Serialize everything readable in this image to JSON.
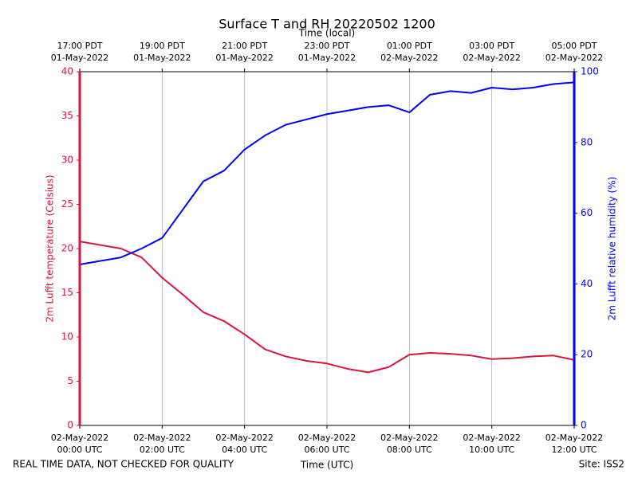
{
  "chart_data": {
    "type": "line",
    "title": "Surface T and RH 20220502 1200",
    "xlabel": "Time (UTC)",
    "x2label": "Time (local)",
    "ylabel": "2m Lufft temperature (Celsius)",
    "y2label": "2m Lufft relative humidity (%)",
    "footer_left": "REAL TIME DATA, NOT CHECKED FOR QUALITY",
    "footer_right": "Site: ISS2",
    "grid": "x",
    "x": [
      0,
      0.5,
      1,
      1.5,
      2,
      2.5,
      3,
      3.5,
      4,
      4.5,
      5,
      5.5,
      6,
      6.5,
      7,
      7.5,
      8,
      8.5,
      9,
      9.5,
      10,
      10.5,
      11,
      11.5,
      12
    ],
    "xlim": [
      0,
      12
    ],
    "xticks": [
      {
        "value": 0,
        "label": "02-May-2022\n00:00 UTC"
      },
      {
        "value": 2,
        "label": "02-May-2022\n02:00 UTC"
      },
      {
        "value": 4,
        "label": "02-May-2022\n04:00 UTC"
      },
      {
        "value": 6,
        "label": "02-May-2022\n06:00 UTC"
      },
      {
        "value": 8,
        "label": "02-May-2022\n08:00 UTC"
      },
      {
        "value": 10,
        "label": "02-May-2022\n10:00 UTC"
      },
      {
        "value": 12,
        "label": "02-May-2022\n12:00 UTC"
      }
    ],
    "x2ticks": [
      {
        "value": 0,
        "label": "17:00 PDT\n01-May-2022"
      },
      {
        "value": 2,
        "label": "19:00 PDT\n01-May-2022"
      },
      {
        "value": 4,
        "label": "21:00 PDT\n01-May-2022"
      },
      {
        "value": 6,
        "label": "23:00 PDT\n01-May-2022"
      },
      {
        "value": 8,
        "label": "01:00 PDT\n02-May-2022"
      },
      {
        "value": 10,
        "label": "03:00 PDT\n02-May-2022"
      },
      {
        "value": 12,
        "label": "05:00 PDT\n02-May-2022"
      }
    ],
    "ylim": [
      0,
      40
    ],
    "yticks": [
      0,
      5,
      10,
      15,
      20,
      25,
      30,
      35,
      40
    ],
    "y2lim": [
      0,
      100
    ],
    "y2ticks": [
      0,
      20,
      40,
      60,
      80,
      100
    ],
    "series": [
      {
        "color": "#dc143c",
        "values": [
          20.8,
          20.4,
          20.0,
          19.0,
          16.7,
          14.8,
          12.8,
          11.8,
          10.3,
          8.6,
          7.8,
          7.3,
          7.0,
          6.4,
          6.0,
          6.6,
          8.0,
          8.2,
          8.1,
          7.9,
          7.5,
          7.6,
          7.8,
          7.9,
          7.4
        ]
      },
      {
        "color": "#0000ff",
        "axis": "y2",
        "values": [
          45.5,
          46.5,
          47.5,
          50,
          53,
          61,
          69,
          72,
          78,
          82,
          85,
          86.5,
          88,
          89,
          90,
          90.5,
          88.5,
          93.5,
          94.5,
          94,
          95.5,
          95,
          95.5,
          96.5,
          97
        ]
      }
    ]
  }
}
